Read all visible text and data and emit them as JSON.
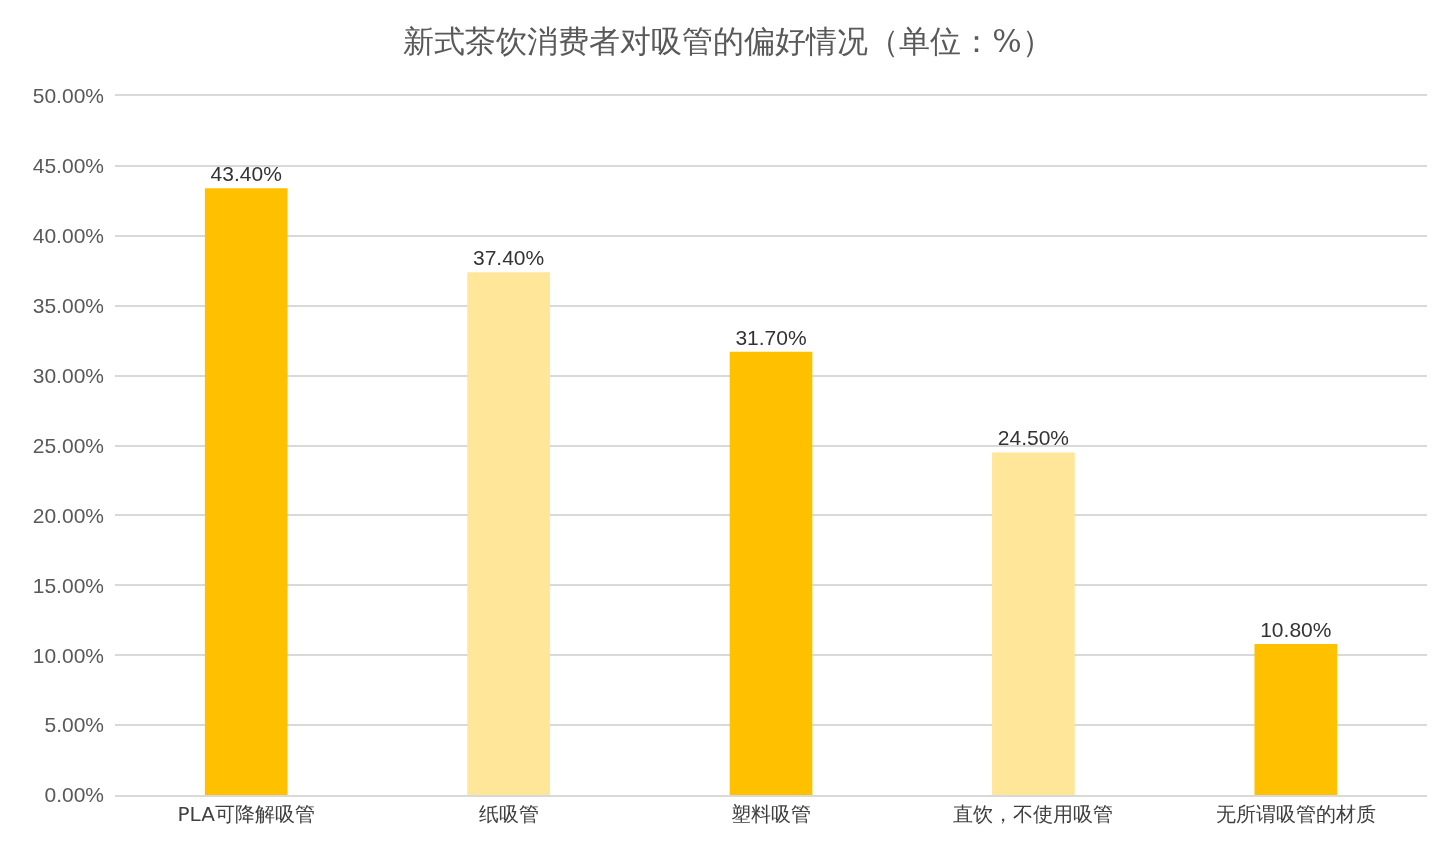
{
  "chart_data": {
    "type": "bar",
    "title": "新式茶饮消费者对吸管的偏好情况（单位：%）",
    "categories": [
      "PLA可降解吸管",
      "纸吸管",
      "塑料吸管",
      "直饮，不使用吸管",
      "无所谓吸管的材质"
    ],
    "values": [
      43.4,
      37.4,
      31.7,
      24.5,
      10.8
    ],
    "colors": [
      "#ffc000",
      "#ffe699",
      "#ffc000",
      "#ffe699",
      "#ffc000"
    ],
    "value_labels": [
      "43.40%",
      "37.40%",
      "31.70%",
      "24.50%",
      "10.80%"
    ],
    "ylim": [
      0,
      50
    ],
    "yticks": [
      {
        "value": 0,
        "label": "0.00%"
      },
      {
        "value": 5,
        "label": "5.00%"
      },
      {
        "value": 10,
        "label": "10.00%"
      },
      {
        "value": 15,
        "label": "15.00%"
      },
      {
        "value": 20,
        "label": "20.00%"
      },
      {
        "value": 25,
        "label": "25.00%"
      },
      {
        "value": 30,
        "label": "30.00%"
      },
      {
        "value": 35,
        "label": "35.00%"
      },
      {
        "value": 40,
        "label": "40.00%"
      },
      {
        "value": 45,
        "label": "45.00%"
      },
      {
        "value": 50,
        "label": "50.00%"
      }
    ],
    "grid": "y"
  }
}
